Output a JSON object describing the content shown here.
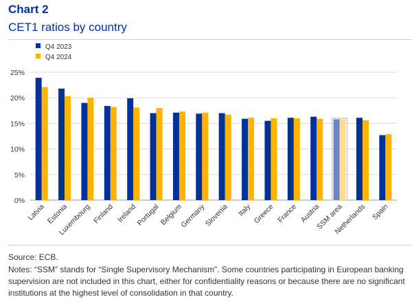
{
  "header": {
    "title": "Chart 2",
    "subtitle": "CET1 ratios by country"
  },
  "colors": {
    "q4_2023": "#003299",
    "q4_2024": "#FFB400",
    "highlight_2023": "#6F84C6",
    "highlight_2024": "#FFDE85",
    "heading": "#003299",
    "grid": "#d9d9d9"
  },
  "chart_data": {
    "type": "bar",
    "title": "CET1 ratios by country",
    "xlabel": "",
    "ylabel": "",
    "ylim": [
      0,
      25
    ],
    "yticks": [
      0,
      5,
      10,
      15,
      20,
      25
    ],
    "ytick_labels": [
      "0%",
      "5%",
      "10%",
      "15%",
      "20%",
      "25%"
    ],
    "grid": true,
    "legend_position": "top-left",
    "categories": [
      "Latvia",
      "Estonia",
      "Luxembourg",
      "Finland",
      "Ireland",
      "Portugal",
      "Belgium",
      "Germany",
      "Slovenia",
      "Italy",
      "Greece",
      "France",
      "Austria",
      "SSM area",
      "Netherlands",
      "Spain"
    ],
    "highlighted_category": "SSM area",
    "series": [
      {
        "name": "Q4 2023",
        "values": [
          23.9,
          21.8,
          19.0,
          18.4,
          19.9,
          17.0,
          17.1,
          16.9,
          17.0,
          15.9,
          15.5,
          16.1,
          16.3,
          15.8,
          16.1,
          12.7
        ]
      },
      {
        "name": "Q4 2024",
        "values": [
          22.1,
          20.3,
          20.0,
          18.2,
          18.1,
          18.0,
          17.3,
          17.1,
          16.7,
          16.1,
          16.0,
          16.0,
          15.9,
          15.8,
          15.6,
          12.9
        ]
      }
    ]
  },
  "footer": {
    "source": "Source: ECB.",
    "notes": "Notes: “SSM” stands for “Single Supervisory Mechanism”. Some countries participating in European banking supervision are not included in this chart, either for confidentiality reasons or because there are no significant institutions at the highest level of consolidation in that country."
  }
}
